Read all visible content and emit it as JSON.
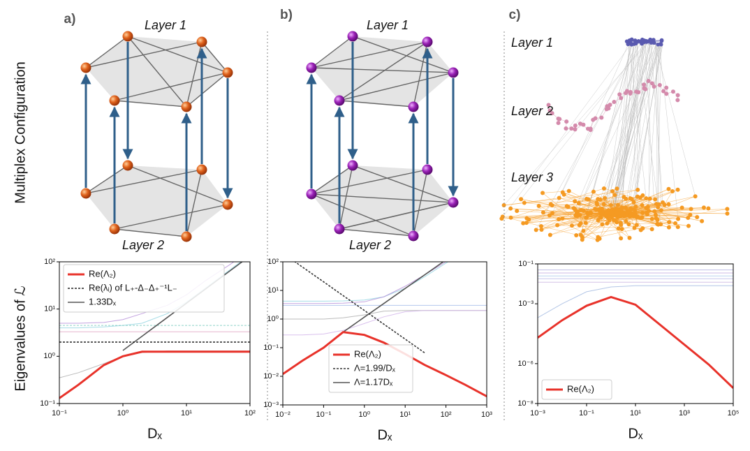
{
  "panel_labels": [
    "a)",
    "b)",
    "c)"
  ],
  "row_labels": [
    "Multiplex Configuration",
    "Eigenvalues of ℒ"
  ],
  "layers": {
    "a": [
      "Layer 1",
      "Layer 2"
    ],
    "b": [
      "Layer 1",
      "Layer 2"
    ],
    "c": [
      "Layer 1",
      "Layer 2",
      "Layer 3"
    ]
  },
  "chart_data": [
    {
      "type": "line",
      "xscale": "log",
      "yscale": "log",
      "xlabel": "Dₓ",
      "legend": "upper left",
      "x": [
        0.1,
        0.2,
        0.5,
        1,
        2,
        5,
        10,
        20,
        50,
        100
      ],
      "xlim": [
        0.1,
        100
      ],
      "ylim": [
        0.1,
        100
      ],
      "xticks": [
        {
          "value": 0.1,
          "label": "10⁻¹"
        },
        {
          "value": 1,
          "label": "10⁰"
        },
        {
          "value": 10,
          "label": "10¹"
        },
        {
          "value": 100,
          "label": "10²"
        }
      ],
      "yticks": [
        {
          "value": 0.1,
          "label": "10⁻¹"
        },
        {
          "value": 1,
          "label": "10⁰"
        },
        {
          "value": 10,
          "label": "10¹"
        },
        {
          "value": 100,
          "label": "10²"
        }
      ],
      "series": [
        {
          "name": "Re(Λ₂)",
          "color": "#e8322a",
          "values": [
            0.13,
            0.25,
            0.65,
            1.0,
            1.25,
            1.25,
            1.25,
            1.25,
            1.25,
            1.25
          ]
        },
        {
          "name": "Re(λᵢ) of L₊-Δ₋Δ₊⁻¹L₋",
          "color": "#222222",
          "linestyle": "dashed",
          "values": [
            2,
            2,
            2,
            2,
            2,
            2,
            2,
            2,
            2,
            2
          ]
        },
        {
          "name": "1.33Dₓ",
          "color": "#555555",
          "values": [
            null,
            null,
            null,
            1.33,
            2.66,
            6.65,
            13.3,
            26.6,
            66.5,
            133
          ]
        },
        {
          "color": "#b48cd8",
          "values": [
            5,
            5,
            5.2,
            6,
            8,
            12,
            20,
            40,
            90,
            180
          ]
        },
        {
          "color": "#8fd3e0",
          "values": [
            4,
            4,
            4.2,
            4.5,
            5,
            8,
            14,
            28,
            70,
            140
          ]
        },
        {
          "color": "#6fc7b8",
          "linestyle": "dashed",
          "values": [
            4.5,
            4.5,
            4.5,
            4.5,
            4.5,
            4.5,
            4.5,
            4.5,
            4.5,
            4.5
          ]
        },
        {
          "color": "#e0a0c0",
          "values": [
            3.3,
            3.3,
            3.3,
            3.3,
            3.3,
            3.3,
            3.3,
            3.3,
            3.3,
            3.3
          ]
        },
        {
          "color": "#aaaaaa",
          "values": [
            0.35,
            0.45,
            0.7,
            1.0,
            1.2,
            1.3,
            1.3,
            1.3,
            1.3,
            1.3
          ]
        }
      ]
    },
    {
      "type": "line",
      "xscale": "log",
      "yscale": "log",
      "xlabel": "Dₓ",
      "legend": "lower center",
      "x": [
        0.01,
        0.03,
        0.1,
        0.3,
        1,
        3,
        10,
        30,
        100,
        300,
        1000
      ],
      "xlim": [
        0.01,
        1000
      ],
      "ylim": [
        0.001,
        100
      ],
      "xticks": [
        {
          "value": 0.01,
          "label": "10⁻²"
        },
        {
          "value": 0.1,
          "label": "10⁻¹"
        },
        {
          "value": 1,
          "label": "10⁰"
        },
        {
          "value": 10,
          "label": "10¹"
        },
        {
          "value": 100,
          "label": "10²"
        },
        {
          "value": 1000,
          "label": "10³"
        }
      ],
      "yticks": [
        {
          "value": 0.001,
          "label": "10⁻³"
        },
        {
          "value": 0.01,
          "label": "10⁻²"
        },
        {
          "value": 0.1,
          "label": "10⁻¹"
        },
        {
          "value": 1,
          "label": "10⁰"
        },
        {
          "value": 10,
          "label": "10¹"
        },
        {
          "value": 100,
          "label": "10²"
        }
      ],
      "series": [
        {
          "name": "Re(Λ₂)",
          "color": "#e8322a",
          "values": [
            0.012,
            0.035,
            0.1,
            0.35,
            0.28,
            0.15,
            0.06,
            0.025,
            0.011,
            0.005,
            0.002
          ]
        },
        {
          "name": "Λ=1.99/Dₓ",
          "color": "#333333",
          "linestyle": "dashed",
          "values": [
            199,
            66,
            19.9,
            6.6,
            1.99,
            0.66,
            0.199,
            0.066,
            null,
            null,
            null
          ]
        },
        {
          "name": "Λ=1.17Dₓ",
          "color": "#555555",
          "values": [
            null,
            null,
            null,
            0.35,
            1.17,
            3.5,
            11.7,
            35,
            117,
            null,
            null
          ]
        },
        {
          "color": "#8fd3e0",
          "values": [
            4.2,
            4.2,
            4.2,
            4.3,
            4.6,
            6,
            12,
            30,
            90,
            250,
            null
          ]
        },
        {
          "color": "#b48cd8",
          "values": [
            3.5,
            3.5,
            3.5,
            3.6,
            4,
            6,
            14,
            35,
            100,
            300,
            null
          ]
        },
        {
          "color": "#9fb8e8",
          "values": [
            3,
            3,
            3,
            3,
            3,
            3,
            3,
            3,
            3,
            3,
            3
          ]
        },
        {
          "color": "#aaaaaa",
          "values": [
            1,
            1,
            1,
            1.1,
            1.4,
            1.9,
            2,
            2,
            2,
            2,
            2
          ]
        },
        {
          "color": "#d0b0e8",
          "values": [
            0.28,
            0.28,
            0.3,
            0.4,
            0.7,
            1.2,
            1.8,
            2,
            2,
            2,
            2
          ]
        }
      ]
    },
    {
      "type": "line",
      "xscale": "log",
      "yscale": "log",
      "xlabel": "Dₓ",
      "legend": "lower left",
      "x": [
        0.001,
        0.01,
        0.1,
        1,
        10,
        100,
        1000,
        10000,
        100000
      ],
      "xlim": [
        0.001,
        100000
      ],
      "ylim": [
        1e-08,
        0.1
      ],
      "xticks": [
        {
          "value": 0.001,
          "label": "10⁻³"
        },
        {
          "value": 0.1,
          "label": "10⁻¹"
        },
        {
          "value": 10,
          "label": "10¹"
        },
        {
          "value": 1000,
          "label": "10³"
        },
        {
          "value": 100000,
          "label": "10⁵"
        }
      ],
      "yticks": [
        {
          "value": 1e-08,
          "label": "10⁻⁸"
        },
        {
          "value": 1e-06,
          "label": "10⁻⁶"
        },
        {
          "value": 0.001,
          "label": "10⁻³"
        },
        {
          "value": 0.1,
          "label": "10⁻¹"
        }
      ],
      "series": [
        {
          "name": "Re(Λ₂)",
          "color": "#e8322a",
          "values": [
            2e-05,
            0.00015,
            0.0008,
            0.0022,
            0.0009,
            9e-05,
            9e-06,
            9e-07,
            6e-08
          ]
        },
        {
          "color": "#b0b0e0",
          "values": [
            0.05,
            0.05,
            0.05,
            0.05,
            0.05,
            0.05,
            0.05,
            0.05,
            0.05
          ]
        },
        {
          "color": "#c0a8e0",
          "values": [
            0.035,
            0.035,
            0.035,
            0.035,
            0.035,
            0.035,
            0.035,
            0.035,
            0.035
          ]
        },
        {
          "color": "#a8c8e8",
          "values": [
            0.025,
            0.025,
            0.025,
            0.025,
            0.025,
            0.025,
            0.025,
            0.025,
            0.025
          ]
        },
        {
          "color": "#b8b8e8",
          "values": [
            0.018,
            0.018,
            0.018,
            0.018,
            0.018,
            0.018,
            0.018,
            0.018,
            0.018
          ]
        },
        {
          "color": "#c8b0e0",
          "values": [
            0.012,
            0.012,
            0.012,
            0.012,
            0.012,
            0.012,
            0.012,
            0.012,
            0.012
          ]
        },
        {
          "color": "#a0b8e0",
          "values": [
            0.0002,
            0.001,
            0.004,
            0.007,
            0.008,
            0.008,
            0.008,
            0.008,
            0.008
          ]
        }
      ]
    }
  ]
}
